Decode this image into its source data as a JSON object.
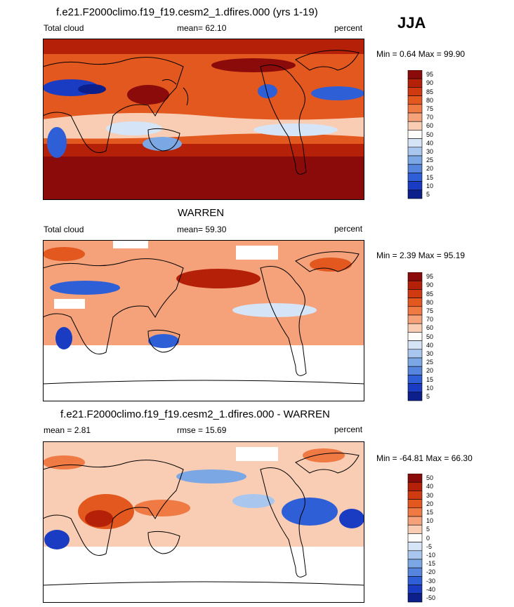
{
  "season": "JJA",
  "panels": [
    {
      "id": "model",
      "title": "f.e21.F2000climo.f19_f19.cesm2_1.dfires.000 (yrs 1-19)",
      "left_label": "Total cloud",
      "mid_label": "mean=  62.10",
      "right_label": "percent",
      "minmax": "Min =   0.64 Max =  99.90",
      "colorbar_levels": [
        "95",
        "90",
        "85",
        "80",
        "75",
        "70",
        "60",
        "50",
        "40",
        "30",
        "25",
        "20",
        "15",
        "10",
        "5"
      ]
    },
    {
      "id": "obs",
      "title": "WARREN",
      "left_label": "Total cloud",
      "mid_label": "mean=  59.30",
      "right_label": "percent",
      "minmax": "Min =   2.39 Max =  95.19",
      "colorbar_levels": [
        "95",
        "90",
        "85",
        "80",
        "75",
        "70",
        "60",
        "50",
        "40",
        "30",
        "25",
        "20",
        "15",
        "10",
        "5"
      ]
    },
    {
      "id": "diff",
      "title": "f.e21.F2000climo.f19_f19.cesm2_1.dfires.000 - WARREN",
      "left_label": "mean =   2.81",
      "mid_label": "rmse =  15.69",
      "right_label": "percent",
      "minmax": "Min = -64.81 Max =  66.30",
      "colorbar_levels": [
        "50",
        "40",
        "30",
        "20",
        "15",
        "10",
        "5",
        "0",
        "-5",
        "-10",
        "-15",
        "-20",
        "-30",
        "-40",
        "-50"
      ]
    }
  ],
  "colors": {
    "scale": [
      "#8b0a0a",
      "#b42008",
      "#d03a10",
      "#e2581f",
      "#ef7a44",
      "#f5a27b",
      "#f9cdb3",
      "#fdfcfa",
      "#d5e4f6",
      "#a9c7ee",
      "#7ba7e4",
      "#5585dd",
      "#2f5fd6",
      "#1a3cc2",
      "#0d1f8a"
    ]
  },
  "chart_data": [
    {
      "type": "heatmap",
      "title": "f.e21.F2000climo.f19_f19.cesm2_1.dfires.000 (yrs 1-19)",
      "variable": "Total cloud",
      "units": "percent",
      "mean": 62.1,
      "min": 0.64,
      "max": 99.9,
      "levels": [
        5,
        10,
        15,
        20,
        25,
        30,
        40,
        50,
        60,
        70,
        75,
        80,
        85,
        90,
        95
      ]
    },
    {
      "type": "heatmap",
      "title": "WARREN",
      "variable": "Total cloud",
      "units": "percent",
      "mean": 59.3,
      "min": 2.39,
      "max": 95.19,
      "levels": [
        5,
        10,
        15,
        20,
        25,
        30,
        40,
        50,
        60,
        70,
        75,
        80,
        85,
        90,
        95
      ]
    },
    {
      "type": "heatmap",
      "title": "f.e21.F2000climo.f19_f19.cesm2_1.dfires.000 - WARREN",
      "units": "percent",
      "mean": 2.81,
      "rmse": 15.69,
      "min": -64.81,
      "max": 66.3,
      "levels": [
        -50,
        -40,
        -30,
        -20,
        -15,
        -10,
        -5,
        0,
        5,
        10,
        15,
        20,
        30,
        40,
        50
      ]
    }
  ]
}
